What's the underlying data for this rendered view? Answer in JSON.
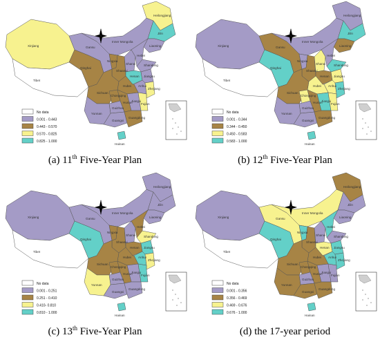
{
  "colors": {
    "no_data": "#ffffff",
    "class1": "#a49bc6",
    "class2": "#a78445",
    "class3": "#f7f28f",
    "class4": "#63d0c8",
    "border": "#555555"
  },
  "panels": [
    {
      "caption_prefix": "(a) 11",
      "caption_sup": "th",
      "caption_suffix": " Five-Year Plan",
      "legend": [
        "No data",
        "0.001 - 0.443",
        "0.443 - 0.570",
        "0.570 - 0.825",
        "0.825 - 1.000"
      ],
      "provinces": {
        "Xinjiang": 3,
        "Tibet": 0,
        "Qinghai": 2,
        "Gansu": 1,
        "Inner Mongolia": 1,
        "Heilongjiang": 3,
        "Jilin": 4,
        "Liaoning": 1,
        "Ningxia": 2,
        "Shaanxi": 2,
        "Shanxi": 1,
        "Hebei": 1,
        "Shandong": 1,
        "Henan": 4,
        "Jiangsu": 1,
        "Anhui": 1,
        "Hubei": 2,
        "Zhejiang": 3,
        "Sichuan": 2,
        "Chongqing": 2,
        "Guizhou": 1,
        "Hunan": 2,
        "Jiangxi": 1,
        "Fujian": 3,
        "Yunnan": 1,
        "Guangxi": 1,
        "Guangdong": 2,
        "Hainan": 4
      }
    },
    {
      "caption_prefix": "(b) 12",
      "caption_sup": "th",
      "caption_suffix": " Five-Year Plan",
      "legend": [
        "No data",
        "0.001 - 0.344",
        "0.344 - 0.450",
        "0.450 - 0.583",
        "0.583 - 1.000"
      ],
      "provinces": {
        "Xinjiang": 1,
        "Tibet": 0,
        "Qinghai": 4,
        "Gansu": 2,
        "Inner Mongolia": 1,
        "Heilongjiang": 1,
        "Jilin": 4,
        "Liaoning": 2,
        "Ningxia": 1,
        "Shaanxi": 2,
        "Shanxi": 3,
        "Hebei": 1,
        "Shandong": 4,
        "Henan": 2,
        "Jiangsu": 3,
        "Anhui": 3,
        "Hubei": 3,
        "Zhejiang": 4,
        "Sichuan": 2,
        "Chongqing": 3,
        "Guizhou": 1,
        "Hunan": 2,
        "Jiangxi": 4,
        "Fujian": 3,
        "Yunnan": 1,
        "Guangxi": 1,
        "Guangdong": 2,
        "Hainan": 4
      }
    },
    {
      "caption_prefix": "(c) 13",
      "caption_sup": "th",
      "caption_suffix": " Five-Year Plan",
      "legend": [
        "No data",
        "0.001 - 0.251",
        "0.251 - 0.410",
        "0.410- 0.810",
        "0.810 - 1.000"
      ],
      "provinces": {
        "Xinjiang": 1,
        "Tibet": 0,
        "Qinghai": 4,
        "Gansu": 1,
        "Inner Mongolia": 1,
        "Heilongjiang": 1,
        "Jilin": 1,
        "Liaoning": 1,
        "Ningxia": 2,
        "Shaanxi": 2,
        "Shanxi": 1,
        "Hebei": 2,
        "Shandong": 3,
        "Henan": 2,
        "Jiangsu": 4,
        "Anhui": 4,
        "Hubei": 2,
        "Zhejiang": 3,
        "Sichuan": 2,
        "Chongqing": 2,
        "Guizhou": 1,
        "Hunan": 2,
        "Jiangxi": 1,
        "Fujian": 4,
        "Yunnan": 3,
        "Guangxi": 1,
        "Guangdong": 1,
        "Hainan": 4
      }
    },
    {
      "caption_prefix": "(d) the 17-year period",
      "caption_sup": "",
      "caption_suffix": "",
      "legend": [
        "No data",
        "0.001 - 0.356",
        "0.356 - 0.469",
        "0.469 - 0.676",
        "0.676 - 1.000"
      ],
      "provinces": {
        "Xinjiang": 1,
        "Tibet": 0,
        "Qinghai": 4,
        "Gansu": 3,
        "Inner Mongolia": 3,
        "Heilongjiang": 2,
        "Jilin": 1,
        "Liaoning": 1,
        "Ningxia": 4,
        "Shaanxi": 2,
        "Shanxi": 1,
        "Hebei": 4,
        "Shandong": 1,
        "Henan": 3,
        "Jiangsu": 4,
        "Anhui": 4,
        "Hubei": 2,
        "Zhejiang": 4,
        "Sichuan": 2,
        "Chongqing": 2,
        "Guizhou": 1,
        "Hunan": 2,
        "Jiangxi": 1,
        "Fujian": 1,
        "Yunnan": 2,
        "Guangxi": 2,
        "Guangdong": 2,
        "Hainan": 4
      }
    }
  ]
}
